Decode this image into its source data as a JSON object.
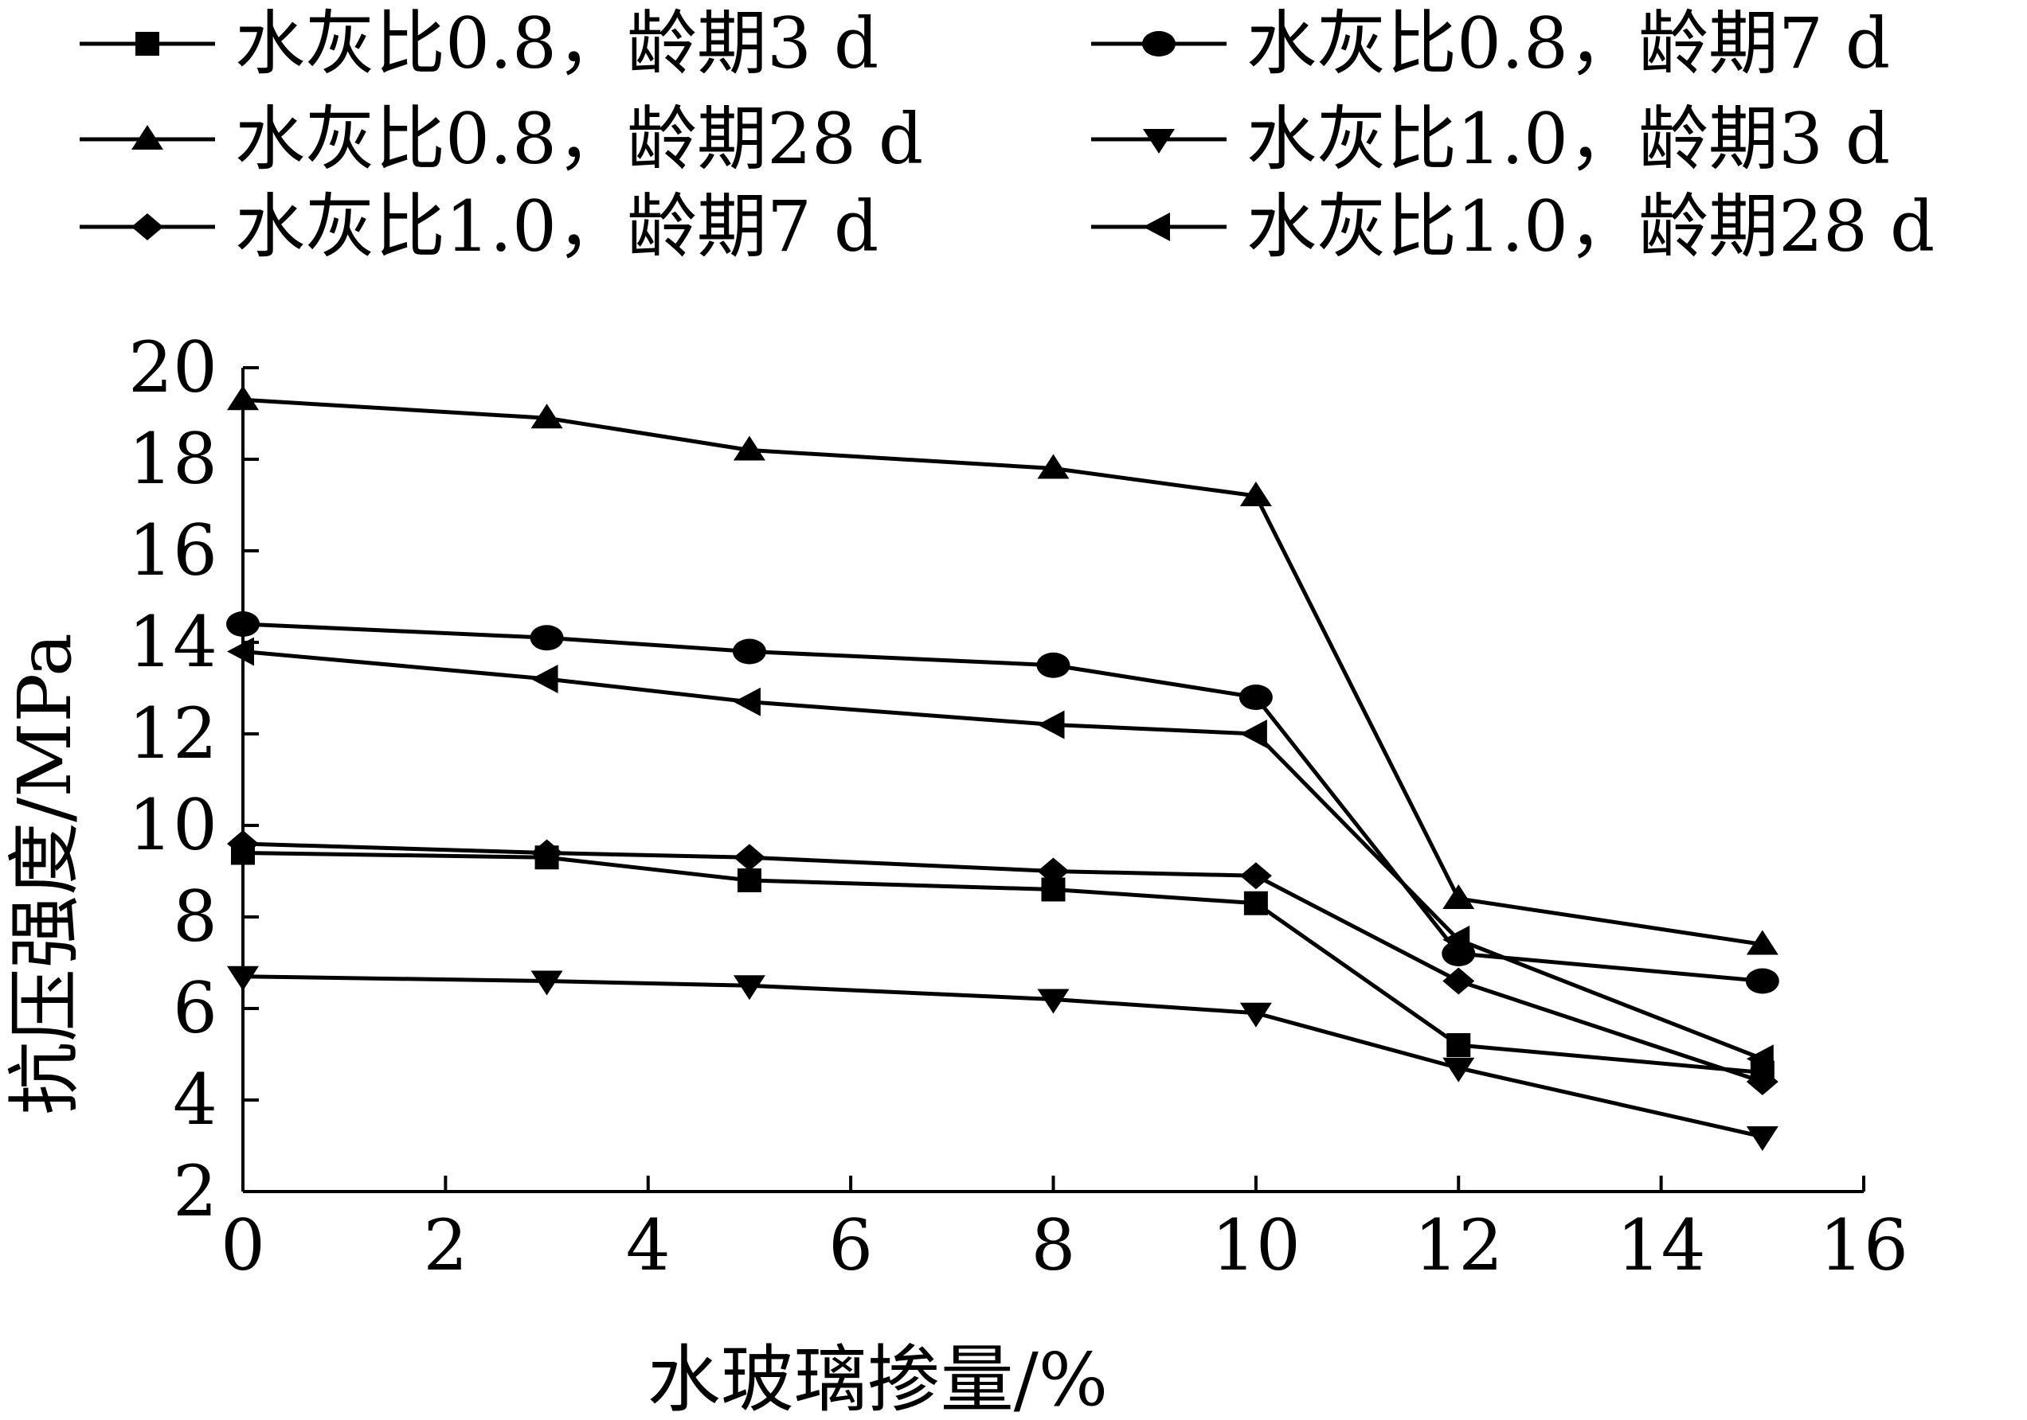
{
  "chart_data": {
    "type": "line",
    "xlabel": "水玻璃掺量/%",
    "ylabel": "抗压强度/MPa",
    "xlim": [
      0,
      16
    ],
    "ylim": [
      2,
      20
    ],
    "xticks": [
      0,
      2,
      4,
      6,
      8,
      10,
      12,
      14,
      16
    ],
    "yticks": [
      2,
      4,
      6,
      8,
      10,
      12,
      14,
      16,
      18,
      20
    ],
    "grid": false,
    "legend_position": "top",
    "x": [
      0,
      3,
      5,
      8,
      10,
      12,
      15
    ],
    "series": [
      {
        "name": "水灰比0.8，龄期3 d",
        "marker": "square",
        "values": [
          9.4,
          9.3,
          8.8,
          8.6,
          8.3,
          5.2,
          4.6
        ]
      },
      {
        "name": "水灰比0.8，龄期7 d",
        "marker": "circle",
        "values": [
          14.4,
          14.1,
          13.8,
          13.5,
          12.8,
          7.2,
          6.6
        ]
      },
      {
        "name": "水灰比0.8，龄期28 d",
        "marker": "triangle-up",
        "values": [
          19.3,
          18.9,
          18.2,
          17.8,
          17.2,
          8.4,
          7.4
        ]
      },
      {
        "name": "水灰比1.0，龄期3 d",
        "marker": "triangle-down",
        "values": [
          6.7,
          6.6,
          6.5,
          6.2,
          5.9,
          4.7,
          3.2
        ]
      },
      {
        "name": "水灰比1.0，龄期7 d",
        "marker": "diamond",
        "values": [
          9.6,
          9.4,
          9.3,
          9.0,
          8.9,
          6.6,
          4.4
        ]
      },
      {
        "name": "水灰比1.0，龄期28 d",
        "marker": "triangle-left",
        "values": [
          13.8,
          13.2,
          12.7,
          12.2,
          12.0,
          7.5,
          4.9
        ]
      }
    ],
    "colors": {
      "line": "#000000",
      "background": "#ffffff"
    }
  }
}
